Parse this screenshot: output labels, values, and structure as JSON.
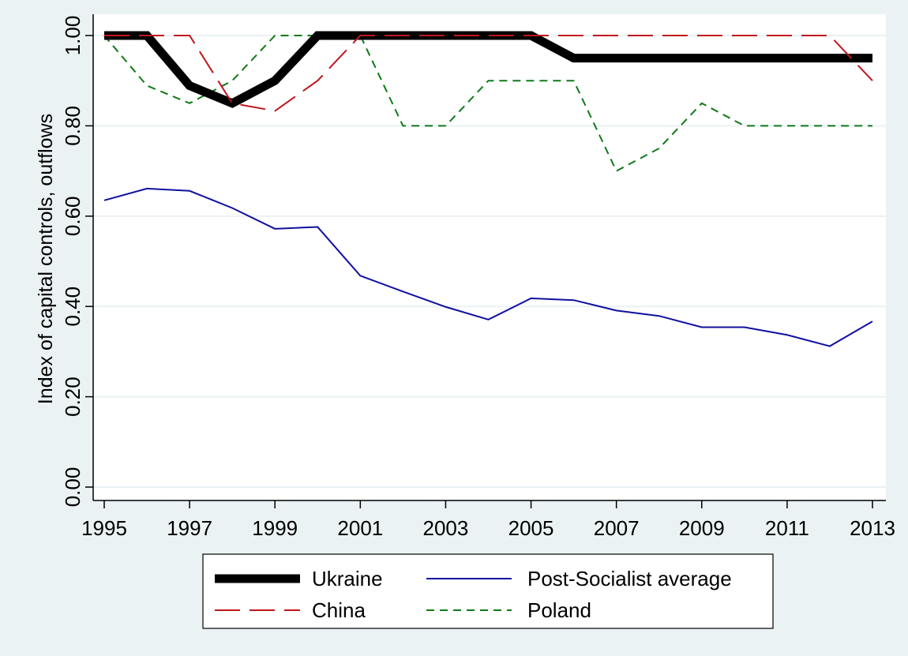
{
  "chart_data": {
    "type": "line",
    "title": "",
    "xlabel": "",
    "ylabel": "Index of capital controls, outflows",
    "x": [
      1995,
      1996,
      1997,
      1998,
      1999,
      2000,
      2001,
      2002,
      2003,
      2004,
      2005,
      2006,
      2007,
      2008,
      2009,
      2010,
      2011,
      2012,
      2013
    ],
    "xticks": [
      "1995",
      "1997",
      "1999",
      "2001",
      "2003",
      "2005",
      "2007",
      "2009",
      "2011",
      "2013"
    ],
    "yticks": [
      "0.00",
      "0.20",
      "0.40",
      "0.60",
      "0.80",
      "1.00"
    ],
    "xlim": [
      1995,
      2013
    ],
    "ylim": [
      0,
      1
    ],
    "grid": "horizontal",
    "legend_position": "bottom",
    "series": [
      {
        "name": "Ukraine",
        "color": "#000000",
        "style": "solid-thick",
        "values": [
          1.0,
          1.0,
          0.889,
          0.85,
          0.9,
          1.0,
          1.0,
          1.0,
          1.0,
          1.0,
          1.0,
          0.95,
          0.95,
          0.95,
          0.95,
          0.95,
          0.95,
          0.95,
          0.95
        ]
      },
      {
        "name": "Post-Socialist average",
        "color": "#1010a0",
        "style": "solid",
        "values": [
          0.635,
          0.661,
          0.656,
          0.618,
          0.572,
          0.576,
          0.468,
          0.433,
          0.399,
          0.371,
          0.418,
          0.414,
          0.391,
          0.379,
          0.354,
          0.354,
          0.337,
          0.312,
          0.367
        ]
      },
      {
        "name": "China",
        "color": "#c0161d",
        "style": "long-dash",
        "values": [
          1.0,
          1.0,
          1.0,
          0.85,
          0.833,
          0.9,
          1.0,
          1.0,
          1.0,
          1.0,
          1.0,
          1.0,
          1.0,
          1.0,
          1.0,
          1.0,
          1.0,
          1.0,
          0.9
        ]
      },
      {
        "name": "Poland",
        "color": "#0f7a18",
        "style": "short-dash",
        "values": [
          1.0,
          0.889,
          0.85,
          0.9,
          1.0,
          1.0,
          1.0,
          0.8,
          0.8,
          0.9,
          0.9,
          0.9,
          0.7,
          0.75,
          0.85,
          0.8,
          0.8,
          0.8,
          0.8
        ]
      }
    ]
  },
  "legend_layout": [
    [
      "Ukraine",
      "Post-Socialist average"
    ],
    [
      "China",
      "Poland"
    ]
  ],
  "colors": {
    "background": "#eaf2f3",
    "plot_background": "#ffffff",
    "gridline": "#eaf2f3"
  }
}
